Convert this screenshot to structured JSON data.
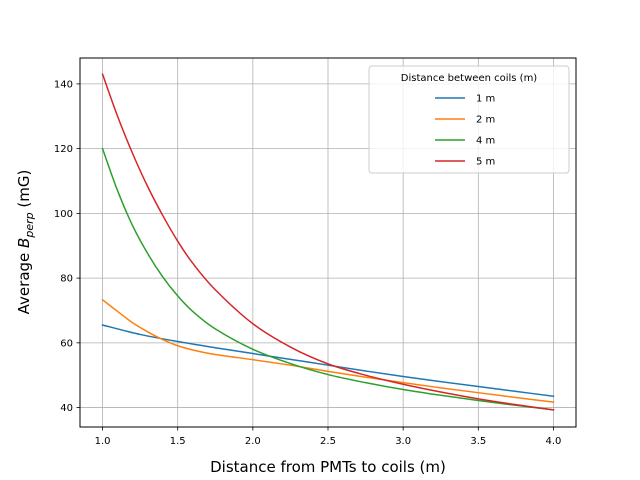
{
  "chart_data": {
    "type": "line",
    "title": "",
    "xlabel": "Distance from PMTs to coils (m)",
    "ylabel_prefix": "Average ",
    "ylabel_symbol": "B",
    "ylabel_subscript": "perp",
    "ylabel_suffix": " (mG)",
    "xlim": [
      0.85,
      4.15
    ],
    "ylim": [
      34,
      148
    ],
    "xticks": [
      1.0,
      1.5,
      2.0,
      2.5,
      3.0,
      3.5,
      4.0
    ],
    "xtick_labels": [
      "1.0",
      "1.5",
      "2.0",
      "2.5",
      "3.0",
      "3.5",
      "4.0"
    ],
    "yticks": [
      40,
      60,
      80,
      100,
      120,
      140
    ],
    "ytick_labels": [
      "40",
      "60",
      "80",
      "100",
      "120",
      "140"
    ],
    "grid": true,
    "legend": {
      "title": "Distance between coils (m)",
      "location": "top-right"
    },
    "series": [
      {
        "name": "1 m",
        "color": "#1f77b4",
        "x": [
          1.0,
          1.25,
          1.5,
          1.75,
          2.0,
          2.25,
          2.5,
          2.75,
          3.0,
          3.25,
          3.5,
          3.75,
          4.0
        ],
        "y": [
          65.5,
          62.6,
          60.4,
          58.5,
          56.7,
          54.9,
          53.1,
          51.3,
          49.6,
          48.0,
          46.5,
          45.0,
          43.5
        ]
      },
      {
        "name": "2 m",
        "color": "#ff7f0e",
        "x": [
          1.0,
          1.1,
          1.2,
          1.3,
          1.4,
          1.5,
          1.6,
          1.75,
          2.0,
          2.25,
          2.5,
          2.75,
          3.0,
          3.25,
          3.5,
          3.75,
          4.0
        ],
        "y": [
          73.3,
          69.7,
          66.2,
          63.4,
          61.0,
          59.1,
          57.8,
          56.4,
          54.8,
          53.1,
          51.2,
          49.4,
          47.7,
          46.1,
          44.6,
          43.1,
          41.7
        ]
      },
      {
        "name": "4 m",
        "color": "#2ca02c",
        "x": [
          1.0,
          1.1,
          1.2,
          1.3,
          1.4,
          1.5,
          1.6,
          1.75,
          2.0,
          2.25,
          2.5,
          2.75,
          3.0,
          3.25,
          3.5,
          3.75,
          4.0
        ],
        "y": [
          120.0,
          107.0,
          96.2,
          87.6,
          80.4,
          74.5,
          69.7,
          64.3,
          58.0,
          53.6,
          50.2,
          47.7,
          45.6,
          43.8,
          42.2,
          40.7,
          39.3
        ]
      },
      {
        "name": "5 m",
        "color": "#d62728",
        "x": [
          1.0,
          1.1,
          1.2,
          1.3,
          1.4,
          1.5,
          1.6,
          1.75,
          2.0,
          2.25,
          2.5,
          2.75,
          3.0,
          3.25,
          3.5,
          3.75,
          4.0
        ],
        "y": [
          143.0,
          130.0,
          118.5,
          108.3,
          99.4,
          91.4,
          84.6,
          76.4,
          65.9,
          58.7,
          53.5,
          50.0,
          47.2,
          44.8,
          42.7,
          40.9,
          39.3
        ]
      }
    ]
  }
}
